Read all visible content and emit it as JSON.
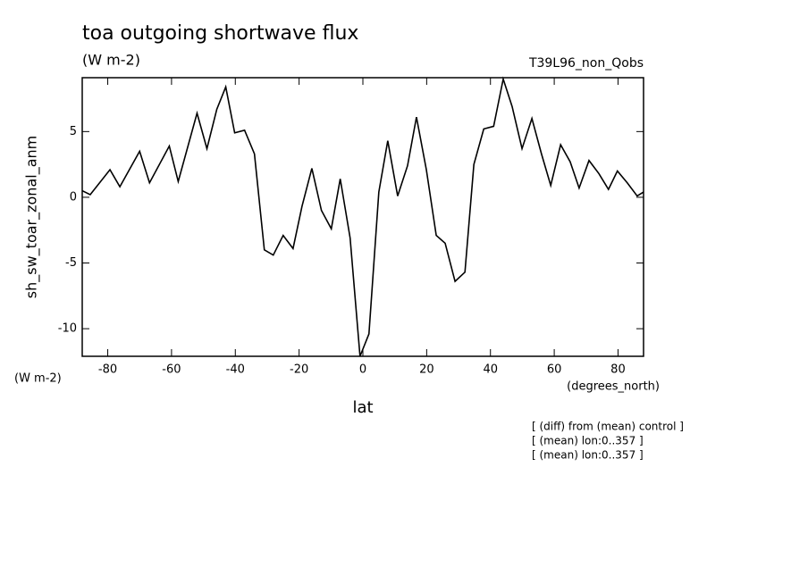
{
  "chart_data": {
    "type": "line",
    "title": "toa outgoing shortwave flux",
    "subtitle": "(W m-2)",
    "run_label": "T39L96_non_Qobs",
    "y_label": "sh_sw_toar_zonal_anm",
    "y_units": "(W m-2)",
    "x_units": "(degrees_north)",
    "x_label": "lat",
    "notes": [
      "[ (diff) from (mean) control ]",
      "[ (mean) lon:0..357 ]",
      "[ (mean) lon:0..357 ]"
    ],
    "x": [
      -88,
      -85.5,
      -79.3,
      -76.2,
      -70,
      -66.9,
      -60.7,
      -57.9,
      -52,
      -48.9,
      -45.8,
      -43,
      -40.2,
      -37.1,
      -34,
      -30.9,
      -28.1,
      -25,
      -21.9,
      -19.1,
      -16,
      -13,
      -9.9,
      -7.1,
      -4,
      -0.9,
      1.9,
      5,
      7.8,
      10.9,
      14,
      16.8,
      19.9,
      23,
      25.8,
      28.9,
      32,
      34.8,
      37.9,
      41,
      44,
      46.8,
      49.9,
      53,
      56,
      58.9,
      62,
      65,
      67.8,
      70.9,
      74,
      77,
      79.8,
      82.9,
      86,
      88
    ],
    "series": [
      {
        "name": "sh_sw_toar_zonal_anm",
        "color": "#000000",
        "values": [
          0.5,
          0.2,
          2.1,
          0.8,
          3.5,
          1.1,
          3.9,
          1.2,
          6.4,
          3.7,
          6.7,
          8.4,
          4.9,
          5.1,
          3.3,
          -4.0,
          -4.4,
          -2.9,
          -3.9,
          -0.7,
          2.2,
          -1.0,
          -2.4,
          1.4,
          -3.1,
          -12.1,
          -10.4,
          0.4,
          4.3,
          0.1,
          2.4,
          6.1,
          2.1,
          -2.9,
          -3.5,
          -6.4,
          -5.7,
          2.5,
          5.2,
          5.4,
          9.0,
          6.9,
          3.7,
          6.0,
          3.3,
          0.9,
          4.0,
          2.7,
          0.7,
          2.8,
          1.8,
          0.6,
          2.0,
          1.1,
          0.1,
          0.4
        ]
      }
    ],
    "xlim": [
      -88,
      88
    ],
    "xticks": [
      -80,
      -60,
      -40,
      -20,
      0,
      20,
      40,
      60,
      80
    ],
    "ylim": [
      -12.1,
      9.1
    ],
    "yticks": [
      -10,
      -5,
      0,
      5
    ]
  }
}
